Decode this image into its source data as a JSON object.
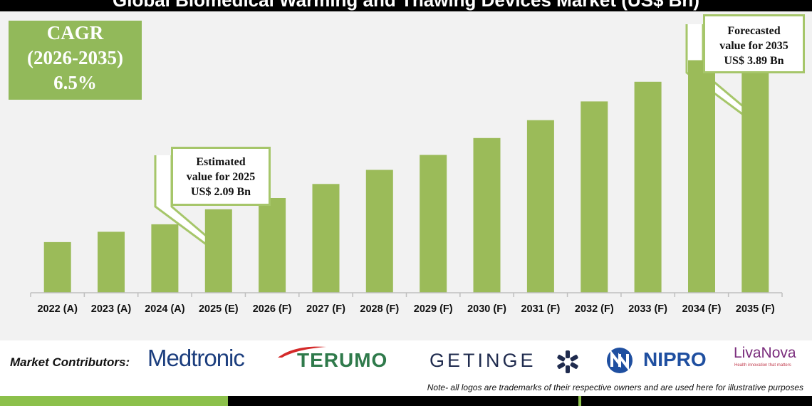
{
  "header": {
    "title": "Global Biomedical Warming and Thawing Devices Market (US$ Bn)"
  },
  "cagr": {
    "line1": "CAGR",
    "line2": "(2026-2035)",
    "value": "6.5%"
  },
  "callouts": {
    "estimated": {
      "line1": "Estimated",
      "line2": "value for 2025",
      "line3": "US$ 2.09 Bn"
    },
    "forecasted": {
      "line1": "Forecasted",
      "line2": "value for 2035",
      "line3": "US$ 3.89 Bn"
    }
  },
  "chart_data": {
    "type": "bar",
    "title": "",
    "xlabel": "",
    "ylabel": "",
    "categories": [
      "2022 (A)",
      "2023 (A)",
      "2024 (A)",
      "2025 (E)",
      "2026 (F)",
      "2027 (F)",
      "2028 (F)",
      "2029 (F)",
      "2030 (F)",
      "2031 (F)",
      "2032 (F)",
      "2033 (F)",
      "2034 (F)",
      "2035 (F)"
    ],
    "values": [
      1.74,
      1.85,
      1.93,
      2.09,
      2.21,
      2.36,
      2.51,
      2.67,
      2.85,
      3.04,
      3.24,
      3.45,
      3.68,
      3.89
    ],
    "ylim": [
      1.2,
      4.2
    ],
    "grid": false,
    "legend": "none",
    "colors": {
      "bar": "#9bbb59",
      "axis": "#bfbfbf",
      "callout_border": "#a6c66a",
      "cagr_box": "#92b95a"
    }
  },
  "contributors": {
    "label": "Market Contributors:",
    "logos": {
      "medtronic": "Medtronic",
      "terumo": "TERUMO",
      "getinge": "GETINGE",
      "nipro": "NIPRO",
      "livanova": "LivaNova",
      "livanova_tagline": "Health innovation that matters"
    },
    "note": "Note- all logos are trademarks of their respective owners and are used here for illustrative purposes"
  }
}
